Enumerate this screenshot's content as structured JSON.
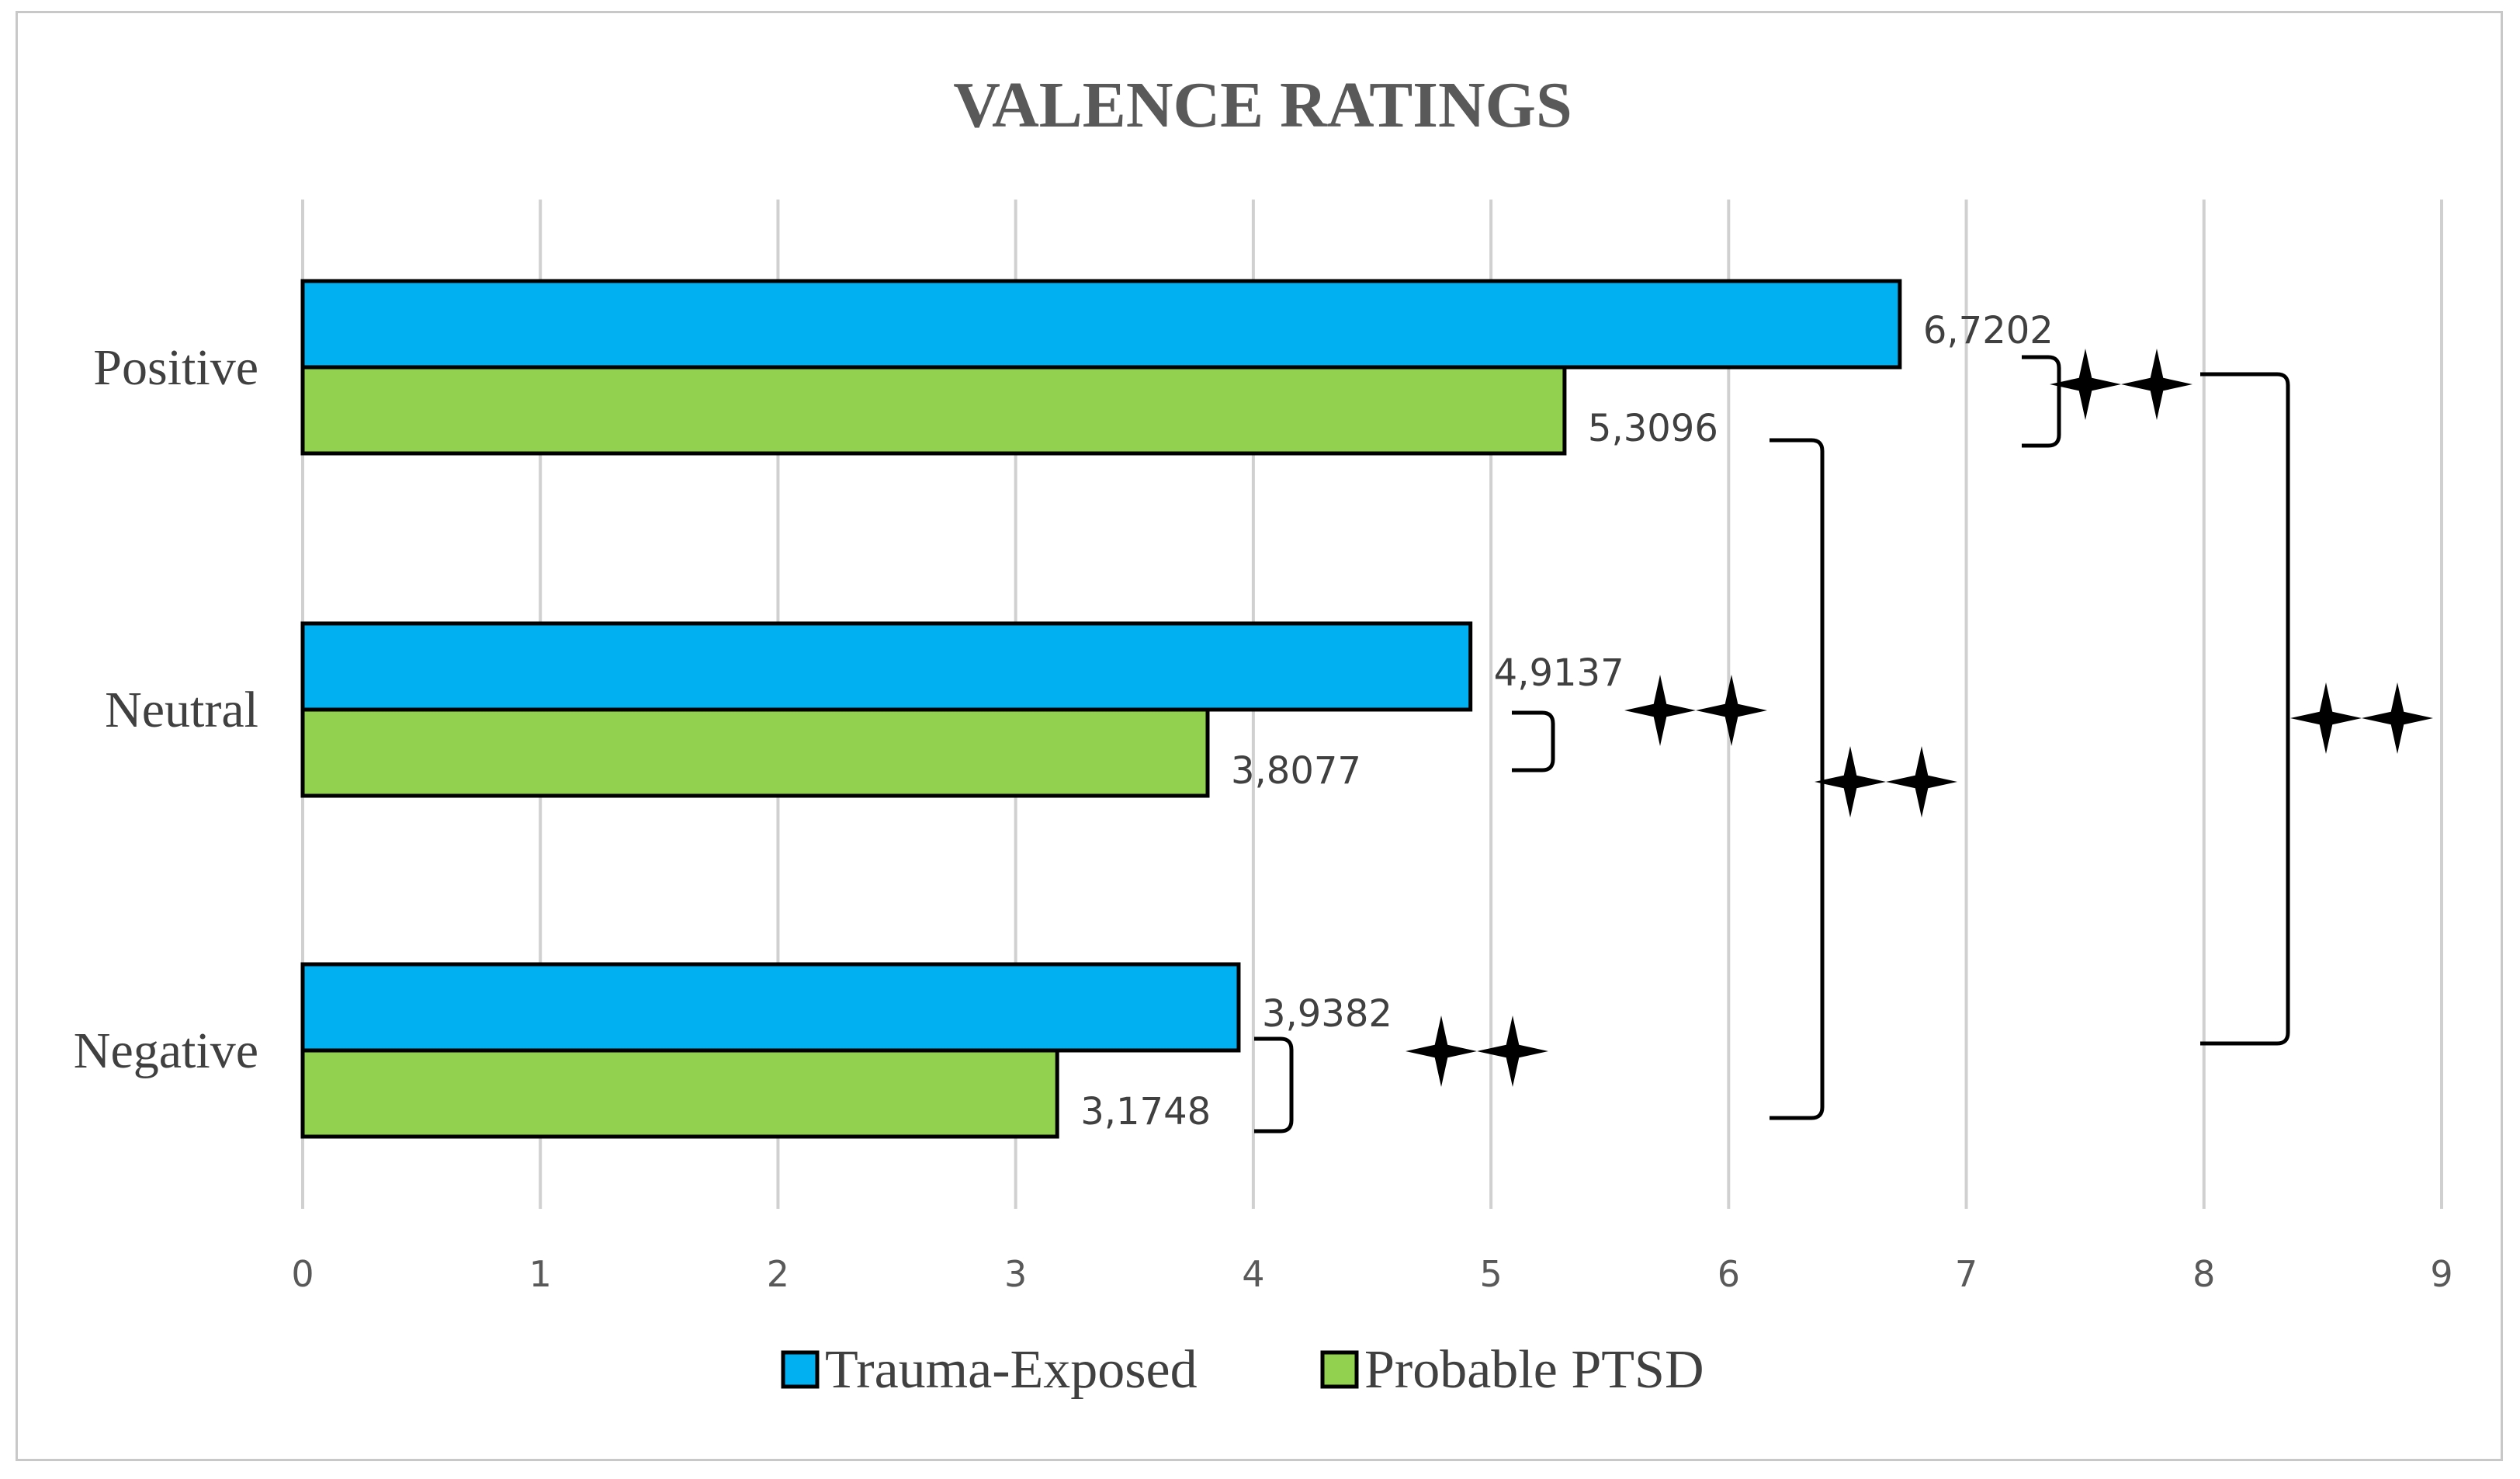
{
  "chart_data": {
    "type": "bar",
    "orientation": "horizontal",
    "title": "VALENCE RATINGS",
    "categories": [
      "Positive",
      "Neutral",
      "Negative"
    ],
    "series": [
      {
        "name": "Trauma-Exposed",
        "color": "#00b0f0",
        "values": [
          6.7202,
          4.9137,
          3.9382
        ],
        "labels": [
          "6,7202",
          "4,9137",
          "3,9382"
        ]
      },
      {
        "name": "Probable PTSD",
        "color": "#92d050",
        "values": [
          5.3096,
          3.8077,
          3.1748
        ],
        "labels": [
          "5,3096",
          "3,8077",
          "3,1748"
        ]
      }
    ],
    "xlim": [
      0,
      9
    ],
    "xticks": [
      "0",
      "1",
      "2",
      "3",
      "4",
      "5",
      "6",
      "7",
      "8",
      "9"
    ],
    "grid": true,
    "legend_position": "bottom",
    "annotations": [
      {
        "type": "significance",
        "symbol": "two-stars",
        "between": "Trauma-Exposed vs Probable PTSD",
        "category": "Positive"
      },
      {
        "type": "significance",
        "symbol": "two-stars",
        "between": "Trauma-Exposed vs Probable PTSD",
        "category": "Neutral"
      },
      {
        "type": "significance",
        "symbol": "two-stars",
        "between": "Trauma-Exposed vs Probable PTSD",
        "category": "Negative"
      },
      {
        "type": "significance",
        "symbol": "two-stars",
        "between": "Probable PTSD Positive vs Probable PTSD Negative"
      },
      {
        "type": "significance",
        "symbol": "two-stars",
        "between": "Trauma-Exposed Positive vs Trauma-Exposed Negative"
      }
    ]
  }
}
